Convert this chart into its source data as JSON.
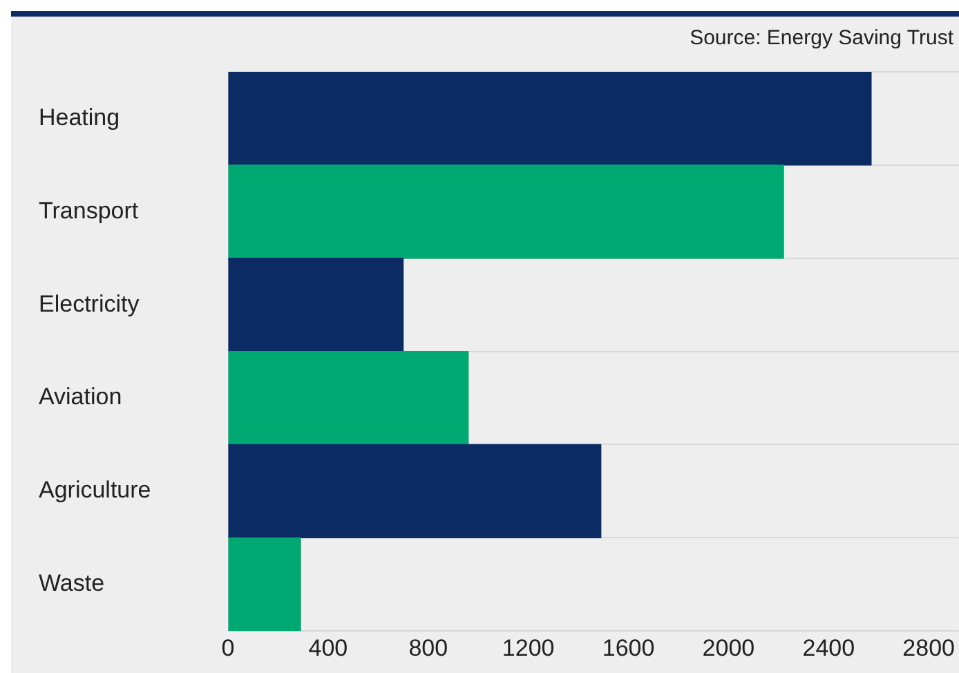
{
  "chart_data": {
    "type": "bar",
    "orientation": "horizontal",
    "categories": [
      "Heating",
      "Transport",
      "Electricity",
      "Aviation",
      "Agriculture",
      "Waste"
    ],
    "values": [
      2570,
      2220,
      700,
      960,
      1490,
      290
    ],
    "colors": [
      "#0c2b64",
      "#00a872",
      "#0c2b64",
      "#00a872",
      "#0c2b64",
      "#00a872"
    ],
    "xlim": [
      0,
      2920
    ],
    "xticks": [
      0,
      400,
      800,
      1200,
      1600,
      2000,
      2400,
      2800
    ],
    "grid": "y",
    "legend": false,
    "annotations": [
      "Source: Energy Saving Trust"
    ]
  }
}
